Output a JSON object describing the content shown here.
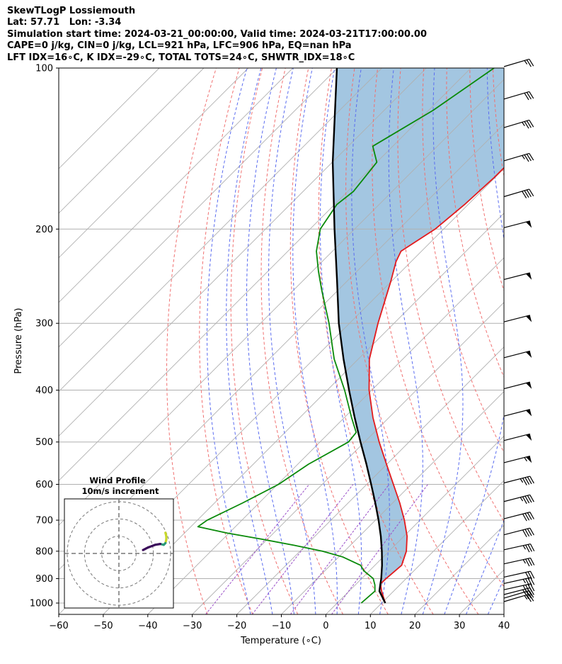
{
  "header": {
    "line1": "SkewTLogP Lossiemouth",
    "line2": "Lat: 57.71   Lon: -3.34",
    "line3": "Simulation start time: 2024-03-21_00:00:00, Valid time: 2024-03-21T17:00:00.00",
    "line4": "CAPE=0 j/kg, CIN=0 j/kg, LCL=921 hPa, LFC=906 hPa, EQ=nan hPa",
    "line5": "LFT IDX=16∘C, K IDX=-29∘C, TOTAL TOTS=24∘C, SHWTR_IDX=18∘C"
  },
  "chart_data": {
    "type": "skew-t log-p",
    "xlabel": "Temperature (∘C)",
    "ylabel": "Pressure (hPa)",
    "xlim": [
      -60,
      40
    ],
    "ylim": [
      1050,
      100
    ],
    "x_ticks": [
      "−60",
      "−50",
      "−40",
      "−30",
      "−20",
      "−10",
      "0",
      "10",
      "20",
      "30",
      "40"
    ],
    "y_ticks": [
      "100",
      "200",
      "300",
      "400",
      "500",
      "600",
      "700",
      "800",
      "900",
      "1000"
    ],
    "grid": true,
    "colors": {
      "temperature": "#e31a1c",
      "dewpoint": "#0a8a0a",
      "parcel": "#000000",
      "cape_shade": "#9ec3df",
      "dry_adiabats": "#f07070",
      "moist_adiabats": "#5a6cf0",
      "mixing_ratio": "#9a4fc8",
      "isotherms": "#b0b0b0"
    },
    "series": [
      {
        "name": "temperature",
        "pressure": [
          1000,
          950,
          920,
          900,
          850,
          800,
          750,
          700,
          650,
          600,
          550,
          500,
          450,
          400,
          350,
          300,
          250,
          230,
          220,
          200,
          180,
          160,
          150,
          140,
          130,
          120,
          110,
          100
        ],
        "temp": [
          10.8,
          7.3,
          5.4,
          5.5,
          6.0,
          3.9,
          0.7,
          -3.5,
          -8.4,
          -14.0,
          -20.1,
          -26.7,
          -33.6,
          -40.6,
          -47.5,
          -53.6,
          -60.2,
          -63.4,
          -64.6,
          -61.9,
          -60.8,
          -60.2,
          -60.2,
          -59.8,
          -58.8,
          -59.4,
          -58.2,
          -58.3
        ]
      },
      {
        "name": "dewpoint",
        "pressure": [
          1000,
          950,
          925,
          900,
          870,
          850,
          820,
          800,
          780,
          760,
          740,
          720,
          700,
          650,
          600,
          550,
          500,
          480,
          450,
          400,
          350,
          300,
          260,
          240,
          220,
          200,
          180,
          170,
          150,
          140,
          120,
          100
        ],
        "temp": [
          5.4,
          5.8,
          4.4,
          2.6,
          -1.3,
          -3.2,
          -9.1,
          -14.9,
          -22.6,
          -31.1,
          -40.4,
          -48.4,
          -47.8,
          -43.7,
          -39.8,
          -37.6,
          -33.6,
          -34.0,
          -38.4,
          -46.1,
          -55.4,
          -64.6,
          -73.7,
          -78.6,
          -83.6,
          -87.7,
          -89.5,
          -88.7,
          -90.0,
          -94.5,
          -89.0,
          -84.8
        ]
      },
      {
        "name": "parcel",
        "pressure": [
          1000,
          950,
          925,
          900,
          850,
          800,
          750,
          700,
          650,
          600,
          550,
          500,
          450,
          400,
          350,
          300,
          250,
          200,
          150,
          100
        ],
        "temp": [
          10.8,
          6.8,
          5.6,
          4.4,
          1.6,
          -1.6,
          -5.2,
          -9.3,
          -13.9,
          -19.0,
          -24.6,
          -30.9,
          -37.7,
          -45.1,
          -53.3,
          -62.4,
          -72.3,
          -84.5,
          -99.9,
          -120.1
        ]
      }
    ],
    "wind_barbs": {
      "pressure": [
        1000,
        985,
        970,
        950,
        925,
        900,
        850,
        800,
        750,
        700,
        650,
        600,
        550,
        500,
        450,
        400,
        350,
        300,
        250,
        200,
        175,
        150,
        130,
        115,
        100
      ],
      "speed_kt": [
        25,
        30,
        35,
        40,
        35,
        30,
        35,
        35,
        40,
        40,
        45,
        45,
        55,
        50,
        50,
        50,
        50,
        50,
        50,
        50,
        40,
        35,
        35,
        30,
        25
      ],
      "direction_deg": [
        250,
        250,
        255,
        260,
        260,
        260,
        260,
        260,
        255,
        255,
        255,
        255,
        255,
        255,
        255,
        255,
        255,
        255,
        255,
        255,
        250,
        250,
        250,
        250,
        250
      ]
    },
    "inset": {
      "type": "hodograph",
      "title": "Wind Profile",
      "subtitle": "10m/s increment",
      "rings_ms": [
        10,
        20,
        30
      ],
      "range_ms": 31,
      "u_ms": [
        27,
        27.5,
        27.5,
        27,
        26,
        24,
        21,
        17,
        14
      ],
      "v_ms": [
        12,
        10,
        8,
        6,
        5,
        5.5,
        5,
        3.5,
        2
      ]
    }
  }
}
